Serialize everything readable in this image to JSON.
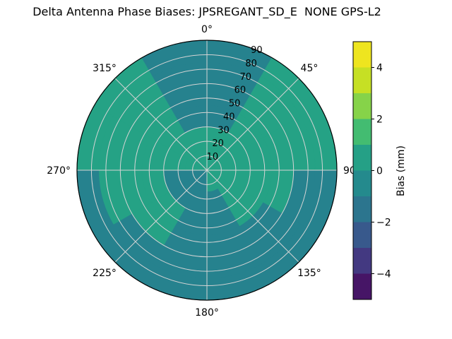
{
  "chart_data": {
    "type": "heatmap",
    "projection": "polar",
    "title": "Delta Antenna Phase Biases: JPSREGANT_SD_E  NONE GPS-L2",
    "colorbar_label": "Bias (mm)",
    "colormap": "viridis",
    "value_range": [
      -5,
      5
    ],
    "radial_axis": "zenith_angle_deg",
    "radial_max": 90,
    "radial_ticks": [
      10,
      20,
      30,
      40,
      50,
      60,
      70,
      80,
      90
    ],
    "angular_ticks": [
      {
        "angle": 0,
        "label": "0°"
      },
      {
        "angle": 45,
        "label": "45°"
      },
      {
        "angle": 90,
        "label": "90"
      },
      {
        "angle": 135,
        "label": "135°"
      },
      {
        "angle": 180,
        "label": "180°"
      },
      {
        "angle": 225,
        "label": "225°"
      },
      {
        "angle": 270,
        "label": "270°"
      },
      {
        "angle": 315,
        "label": "315°"
      }
    ],
    "colorbar_ticks": [
      {
        "value": -4,
        "label": "−4"
      },
      {
        "value": -2,
        "label": "−2"
      },
      {
        "value": 0,
        "label": "0"
      },
      {
        "value": 2,
        "label": "2"
      },
      {
        "value": 4,
        "label": "4"
      }
    ],
    "colorbar_levels": [
      -5,
      -4,
      -3,
      -2,
      -1,
      0,
      1,
      2,
      3,
      4,
      5
    ],
    "grid": {
      "azimuth_bin_deg": 30,
      "zenith_bin_deg": 15,
      "note": "bias values (mm), rings from center (zenith 0) outward, azimuth clockwise from North",
      "values": [
        [
          0.6,
          0.6,
          0.6,
          0.6,
          0.6,
          0.6,
          -1.0,
          -1.0,
          -1.0,
          0.6,
          0.6,
          0.6
        ],
        [
          0.6,
          0.6,
          0.6,
          0.6,
          0.6,
          -1.0,
          -1.0,
          -1.0,
          -1.0,
          0.6,
          0.6,
          0.6
        ],
        [
          -1.0,
          0.6,
          0.6,
          0.6,
          0.6,
          -1.0,
          -1.0,
          0.6,
          0.6,
          0.6,
          0.6,
          -1.0
        ],
        [
          -1.0,
          0.6,
          0.6,
          0.6,
          -1.0,
          -1.0,
          -1.0,
          0.6,
          0.6,
          0.6,
          0.6,
          -1.0
        ],
        [
          -1.0,
          0.6,
          0.6,
          -1.0,
          -1.0,
          -1.0,
          -1.0,
          -1.0,
          0.6,
          0.6,
          0.6,
          -1.0
        ],
        [
          -1.0,
          0.6,
          0.6,
          -1.0,
          -1.0,
          -1.0,
          -1.0,
          -1.0,
          -1.0,
          0.6,
          0.6,
          -1.0
        ]
      ]
    }
  }
}
